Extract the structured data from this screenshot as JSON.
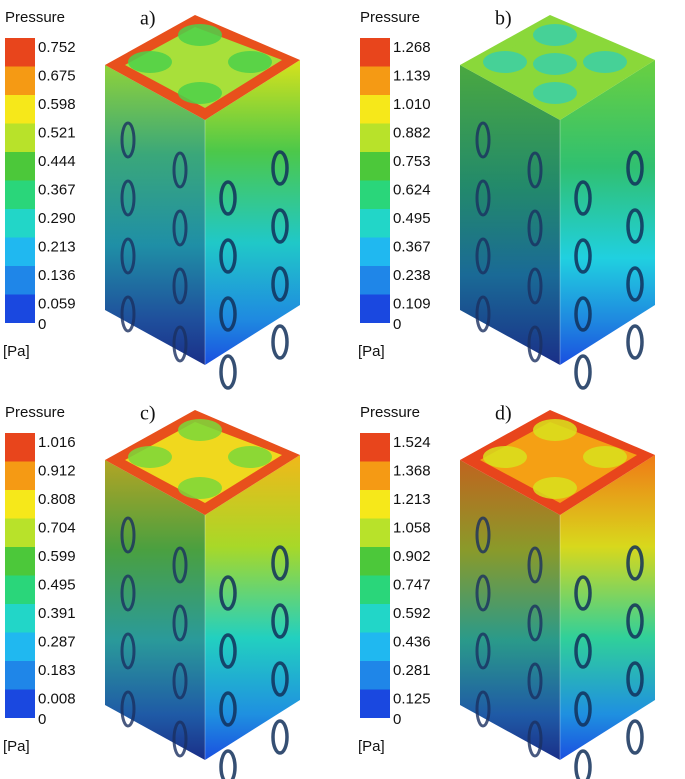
{
  "panels": [
    {
      "tag": "a)",
      "legend_title": "Pressure",
      "unit": "[Pa]",
      "labels": [
        "0.752",
        "0.675",
        "0.598",
        "0.521",
        "0.444",
        "0.367",
        "0.290",
        "0.213",
        "0.136",
        "0.059",
        "0"
      ]
    },
    {
      "tag": "b)",
      "legend_title": "Pressure",
      "unit": "[Pa]",
      "labels": [
        "1.268",
        "1.139",
        "1.010",
        "0.882",
        "0.753",
        "0.624",
        "0.495",
        "0.367",
        "0.238",
        "0.109",
        "0"
      ]
    },
    {
      "tag": "c)",
      "legend_title": "Pressure",
      "unit": "[Pa]",
      "labels": [
        "1.016",
        "0.912",
        "0.808",
        "0.704",
        "0.599",
        "0.495",
        "0.391",
        "0.287",
        "0.183",
        "0.008",
        "0"
      ]
    },
    {
      "tag": "d)",
      "legend_title": "Pressure",
      "unit": "[Pa]",
      "labels": [
        "1.524",
        "1.368",
        "1.213",
        "1.058",
        "0.902",
        "0.747",
        "0.592",
        "0.436",
        "0.281",
        "0.125",
        "0"
      ]
    }
  ]
}
